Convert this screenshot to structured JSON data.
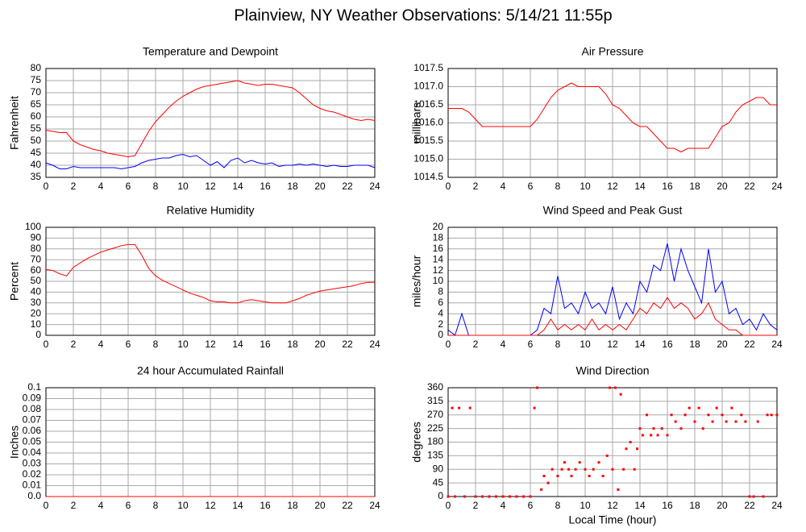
{
  "title": "Plainview, NY Weather Observations: 5/14/21 11:55p",
  "chart_data": [
    {
      "type": "line",
      "title": "Temperature and Dewpoint",
      "ylabel": "Fahrenheit",
      "x": [
        0,
        0.5,
        1,
        1.5,
        2,
        2.5,
        3,
        3.5,
        4,
        4.5,
        5,
        5.5,
        6,
        6.5,
        7,
        7.5,
        8,
        8.5,
        9,
        9.5,
        10,
        10.5,
        11,
        11.5,
        12,
        12.5,
        13,
        13.5,
        14,
        14.5,
        15,
        15.5,
        16,
        16.5,
        17,
        17.5,
        18,
        18.5,
        19,
        19.5,
        20,
        20.5,
        21,
        21.5,
        22,
        22.5,
        23,
        23.5,
        24
      ],
      "series": [
        {
          "name": "Temperature",
          "color": "#ff0000",
          "values": [
            54.5,
            54,
            53.5,
            53.5,
            50,
            48.5,
            47.5,
            46.5,
            46,
            45,
            44.5,
            44,
            43.5,
            44,
            49,
            54,
            58,
            61,
            64,
            66.5,
            68.5,
            70,
            71.5,
            72.5,
            73,
            73.5,
            74,
            74.5,
            75,
            74,
            73.5,
            73,
            73.5,
            73.5,
            73,
            72.5,
            72,
            70,
            67.5,
            65,
            63.5,
            62.5,
            62,
            61,
            60,
            59,
            58.5,
            59,
            58.5
          ]
        },
        {
          "name": "Dewpoint",
          "color": "#0000ff",
          "values": [
            41,
            40,
            38.5,
            38.5,
            39.5,
            39,
            39,
            39,
            39,
            39,
            39,
            38.5,
            39,
            39.5,
            41,
            42,
            42.5,
            43,
            43,
            44,
            44.5,
            43.5,
            44,
            42,
            40,
            41.5,
            39,
            42,
            43,
            41,
            42,
            41,
            40.5,
            41,
            39.5,
            40,
            40,
            40.5,
            40,
            40.5,
            40,
            39.5,
            40,
            39.5,
            39.5,
            40,
            40,
            40,
            39
          ]
        }
      ],
      "xlim": [
        0,
        24
      ],
      "xticks": [
        0,
        2,
        4,
        6,
        8,
        10,
        12,
        14,
        16,
        18,
        20,
        22,
        24
      ],
      "ylim": [
        35,
        80
      ],
      "yticks": [
        35,
        40,
        45,
        50,
        55,
        60,
        65,
        70,
        75,
        80
      ],
      "grid": true
    },
    {
      "type": "line",
      "title": "Air Pressure",
      "ylabel": "millibars",
      "x": [
        0,
        0.5,
        1,
        1.5,
        2,
        2.5,
        3,
        3.5,
        4,
        4.5,
        5,
        5.5,
        6,
        6.5,
        7,
        7.5,
        8,
        8.5,
        9,
        9.5,
        10,
        10.5,
        11,
        11.5,
        12,
        12.5,
        13,
        13.5,
        14,
        14.5,
        15,
        15.5,
        16,
        16.5,
        17,
        17.5,
        18,
        18.5,
        19,
        19.5,
        20,
        20.5,
        21,
        21.5,
        22,
        22.5,
        23,
        23.5,
        24
      ],
      "series": [
        {
          "name": "Pressure",
          "color": "#ff0000",
          "values": [
            1016.4,
            1016.4,
            1016.4,
            1016.3,
            1016.1,
            1015.9,
            1015.9,
            1015.9,
            1015.9,
            1015.9,
            1015.9,
            1015.9,
            1015.9,
            1016.1,
            1016.4,
            1016.7,
            1016.9,
            1017.0,
            1017.1,
            1017.0,
            1017.0,
            1017.0,
            1017.0,
            1016.8,
            1016.5,
            1016.4,
            1016.2,
            1016.0,
            1015.9,
            1015.9,
            1015.7,
            1015.5,
            1015.3,
            1015.3,
            1015.2,
            1015.3,
            1015.3,
            1015.3,
            1015.3,
            1015.6,
            1015.9,
            1016.0,
            1016.3,
            1016.5,
            1016.6,
            1016.7,
            1016.7,
            1016.5,
            1016.5
          ]
        }
      ],
      "xlim": [
        0,
        24
      ],
      "xticks": [
        0,
        2,
        4,
        6,
        8,
        10,
        12,
        14,
        16,
        18,
        20,
        22,
        24
      ],
      "ylim": [
        1014.5,
        1017.5
      ],
      "yticks": [
        1014.5,
        {
          "value": 1015,
          "label": "1015.0"
        },
        1015.5,
        {
          "value": 1016,
          "label": "1016.0"
        },
        1016.5,
        {
          "value": 1017,
          "label": "1017.0"
        },
        1017.5
      ],
      "grid": true
    },
    {
      "type": "line",
      "title": "Relative Humidity",
      "ylabel": "Percent",
      "x": [
        0,
        0.5,
        1,
        1.5,
        2,
        2.5,
        3,
        3.5,
        4,
        4.5,
        5,
        5.5,
        6,
        6.5,
        7,
        7.5,
        8,
        8.5,
        9,
        9.5,
        10,
        10.5,
        11,
        11.5,
        12,
        12.5,
        13,
        13.5,
        14,
        14.5,
        15,
        15.5,
        16,
        16.5,
        17,
        17.5,
        18,
        18.5,
        19,
        19.5,
        20,
        20.5,
        21,
        21.5,
        22,
        22.5,
        23,
        23.5,
        24
      ],
      "series": [
        {
          "name": "Humidity",
          "color": "#ff0000",
          "values": [
            61,
            60,
            57,
            55,
            63,
            67,
            71,
            74,
            77,
            79,
            81,
            83,
            84,
            84,
            74,
            62,
            55,
            51,
            48,
            45,
            42,
            39,
            37,
            35,
            32,
            31,
            31,
            30,
            30,
            32,
            33,
            32,
            31,
            30,
            30,
            30,
            32,
            34,
            37,
            39,
            41,
            42,
            43,
            44,
            45,
            46,
            48,
            49,
            49
          ]
        }
      ],
      "xlim": [
        0,
        24
      ],
      "xticks": [
        0,
        2,
        4,
        6,
        8,
        10,
        12,
        14,
        16,
        18,
        20,
        22,
        24
      ],
      "ylim": [
        0,
        100
      ],
      "yticks": [
        0,
        10,
        20,
        30,
        40,
        50,
        60,
        70,
        80,
        90,
        100
      ],
      "grid": true
    },
    {
      "type": "line",
      "title": "Wind Speed and Peak Gust",
      "ylabel": "miles/hour",
      "x": [
        0,
        0.5,
        1,
        1.5,
        2,
        2.5,
        3,
        3.5,
        4,
        4.5,
        5,
        5.5,
        6,
        6.5,
        7,
        7.5,
        8,
        8.5,
        9,
        9.5,
        10,
        10.5,
        11,
        11.5,
        12,
        12.5,
        13,
        13.5,
        14,
        14.5,
        15,
        15.5,
        16,
        16.5,
        17,
        17.5,
        18,
        18.5,
        19,
        19.5,
        20,
        20.5,
        21,
        21.5,
        22,
        22.5,
        23,
        23.5,
        24
      ],
      "series": [
        {
          "name": "Peak Gust",
          "color": "#0000ff",
          "values": [
            1,
            0,
            4,
            0,
            0,
            0,
            0,
            0,
            0,
            0,
            0,
            0,
            0,
            1,
            5,
            4,
            11,
            5,
            6,
            4,
            8,
            5,
            6,
            4,
            9,
            3,
            6,
            4,
            10,
            8,
            13,
            12,
            17,
            10,
            16,
            12,
            9,
            6,
            16,
            8,
            10,
            4,
            5,
            2,
            3,
            1,
            4,
            2,
            1
          ]
        },
        {
          "name": "Wind Speed",
          "color": "#ff0000",
          "values": [
            0,
            0,
            0,
            0,
            0,
            0,
            0,
            0,
            0,
            0,
            0,
            0,
            0,
            0,
            1,
            3,
            1,
            2,
            1,
            2,
            1,
            3,
            1,
            2,
            1,
            2,
            1,
            3,
            5,
            4,
            6,
            5,
            7,
            5,
            6,
            5,
            3,
            4,
            6,
            3,
            2,
            1,
            1,
            0,
            0,
            0,
            0,
            0,
            0
          ]
        }
      ],
      "xlim": [
        0,
        24
      ],
      "xticks": [
        0,
        2,
        4,
        6,
        8,
        10,
        12,
        14,
        16,
        18,
        20,
        22,
        24
      ],
      "ylim": [
        0,
        20
      ],
      "yticks": [
        0,
        2,
        4,
        6,
        8,
        10,
        12,
        14,
        16,
        18,
        20
      ],
      "grid": true
    },
    {
      "type": "line",
      "title": "24 hour Accumulated Rainfall",
      "ylabel": "Inches",
      "x": [
        0,
        24
      ],
      "series": [
        {
          "name": "Rainfall",
          "color": "#ff0000",
          "values": [
            0,
            0
          ]
        }
      ],
      "xlim": [
        0,
        24
      ],
      "xticks": [
        0,
        2,
        4,
        6,
        8,
        10,
        12,
        14,
        16,
        18,
        20,
        22,
        24
      ],
      "ylim": [
        0,
        0.1
      ],
      "yticks": [
        {
          "value": 0,
          "label": "0.0"
        },
        0.01,
        0.02,
        0.03,
        0.04,
        0.05,
        0.06,
        0.07,
        0.08,
        0.09,
        0.1
      ],
      "grid": true
    },
    {
      "type": "scatter",
      "title": "Wind Direction",
      "ylabel": "degrees",
      "xlabel": "Local Time (hour)",
      "x": [
        0,
        0.3,
        0.5,
        0.8,
        1.2,
        1.6,
        2,
        2.5,
        3,
        3.5,
        4,
        4.5,
        5,
        5.5,
        6,
        6.3,
        6.5,
        6.8,
        7,
        7.3,
        7.6,
        8,
        8.3,
        8.5,
        8.8,
        9,
        9.3,
        9.6,
        10,
        10.3,
        10.6,
        11,
        11.3,
        11.6,
        11.8,
        12,
        12.2,
        12.4,
        12.6,
        12.8,
        13,
        13.3,
        13.6,
        13.8,
        14,
        14.2,
        14.5,
        14.8,
        15,
        15.3,
        15.6,
        16,
        16.3,
        16.6,
        17,
        17.3,
        17.6,
        18,
        18.3,
        18.6,
        19,
        19.3,
        19.6,
        20,
        20.3,
        20.7,
        21,
        21.4,
        21.7,
        22,
        22.3,
        22.6,
        23,
        23.3,
        23.6,
        24
      ],
      "series": [
        {
          "name": "Direction",
          "color": "#ff0000",
          "values": [
            0,
            293,
            0,
            293,
            0,
            293,
            0,
            0,
            0,
            0,
            0,
            0,
            0,
            0,
            0,
            293,
            360,
            23,
            68,
            45,
            90,
            68,
            90,
            113,
            90,
            68,
            90,
            113,
            90,
            68,
            90,
            113,
            68,
            135,
            360,
            90,
            360,
            23,
            338,
            90,
            158,
            180,
            90,
            158,
            225,
            203,
            270,
            203,
            225,
            203,
            225,
            203,
            270,
            248,
            225,
            270,
            293,
            248,
            293,
            225,
            270,
            248,
            293,
            270,
            248,
            293,
            248,
            270,
            248,
            0,
            0,
            248,
            0,
            270,
            270,
            270
          ]
        }
      ],
      "xlim": [
        0,
        24
      ],
      "xticks": [
        0,
        2,
        4,
        6,
        8,
        10,
        12,
        14,
        16,
        18,
        20,
        22,
        24
      ],
      "ylim": [
        0,
        360
      ],
      "yticks": [
        0,
        45,
        90,
        135,
        180,
        225,
        270,
        315,
        360
      ],
      "grid": true
    }
  ]
}
